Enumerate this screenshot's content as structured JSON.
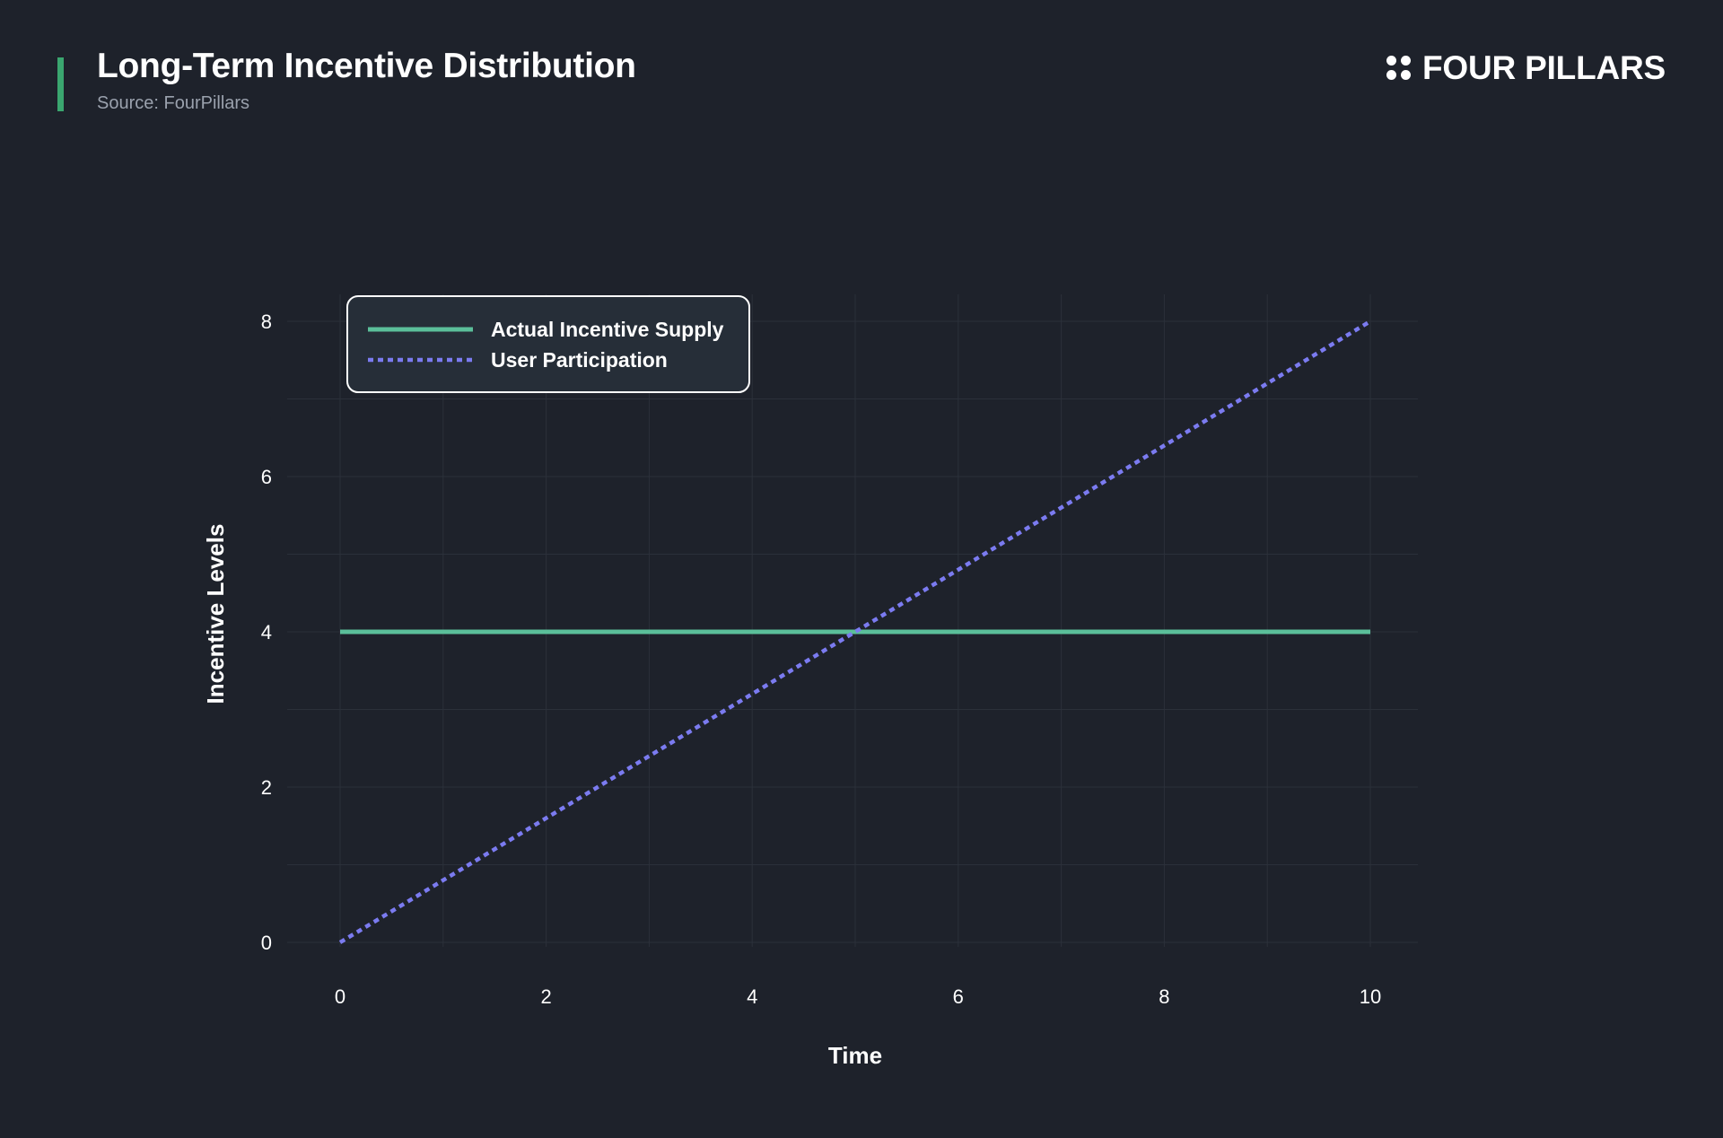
{
  "header": {
    "title": "Long-Term Incentive Distribution",
    "subtitle": "Source: FourPillars",
    "accent_color": "#3aa66f"
  },
  "brand": {
    "name": "FOUR PILLARS",
    "icon": "four-dots-icon"
  },
  "chart_data": {
    "type": "line",
    "xlabel": "Time",
    "ylabel": "Incentive Levels",
    "xlim": [
      0,
      10
    ],
    "ylim": [
      0,
      8
    ],
    "xticks": [
      0,
      2,
      4,
      6,
      8,
      10
    ],
    "yticks": [
      0,
      2,
      4,
      6,
      8
    ],
    "grid": true,
    "legend_position": "top-left",
    "series": [
      {
        "name": "Actual Incentive Supply",
        "style": "solid",
        "color": "#5bbf9a",
        "x": [
          0,
          10
        ],
        "y": [
          4,
          4
        ]
      },
      {
        "name": "User Participation",
        "style": "dotted",
        "color": "#7b7bf0",
        "x": [
          0,
          10
        ],
        "y": [
          0,
          8
        ]
      }
    ]
  }
}
